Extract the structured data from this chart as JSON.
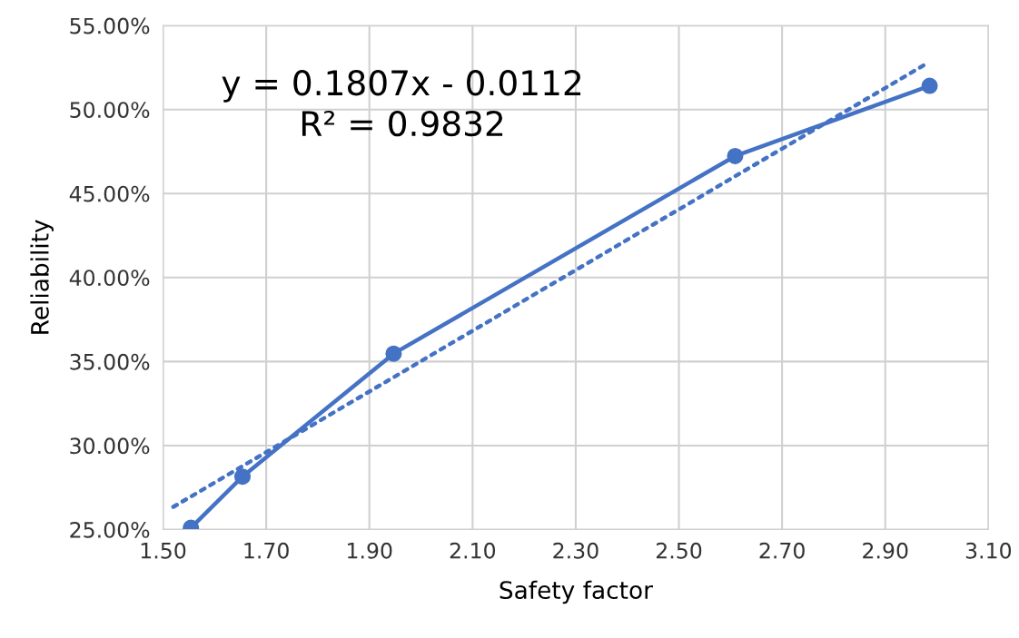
{
  "chart_data": {
    "type": "line",
    "xlabel": "Safety factor",
    "ylabel": "Reliability",
    "annotations": [
      "y = 0.1807x - 0.0112",
      "R² = 0.9832"
    ],
    "series": [
      {
        "color": "#4472c4",
        "x": [
          1.554,
          1.654,
          1.947,
          2.609,
          2.986
        ],
        "values": [
          25.1,
          28.15,
          35.47,
          47.23,
          51.41
        ],
        "marker": "circle",
        "line_style": "solid"
      },
      {
        "color": "#4472c4",
        "x": [
          1.52,
          2.98
        ],
        "values": [
          26.35,
          52.73
        ],
        "marker": "none",
        "line_style": "dotted"
      }
    ],
    "xlim": [
      1.5,
      3.1
    ],
    "xticks": [
      {
        "value": 1.5,
        "label": "1.50"
      },
      {
        "value": 1.7,
        "label": "1.70"
      },
      {
        "value": 1.9,
        "label": "1.90"
      },
      {
        "value": 2.1,
        "label": "2.10"
      },
      {
        "value": 2.3,
        "label": "2.30"
      },
      {
        "value": 2.5,
        "label": "2.50"
      },
      {
        "value": 2.7,
        "label": "2.70"
      },
      {
        "value": 2.9,
        "label": "2.90"
      },
      {
        "value": 3.1,
        "label": "3.10"
      }
    ],
    "ylim": [
      25,
      55
    ],
    "yticks": [
      {
        "value": 25,
        "label": "25.00%"
      },
      {
        "value": 30,
        "label": "30.00%"
      },
      {
        "value": 35,
        "label": "35.00%"
      },
      {
        "value": 40,
        "label": "40.00%"
      },
      {
        "value": 45,
        "label": "45.00%"
      },
      {
        "value": 50,
        "label": "50.00%"
      },
      {
        "value": 55,
        "label": "55.00%"
      }
    ],
    "grid": true
  }
}
